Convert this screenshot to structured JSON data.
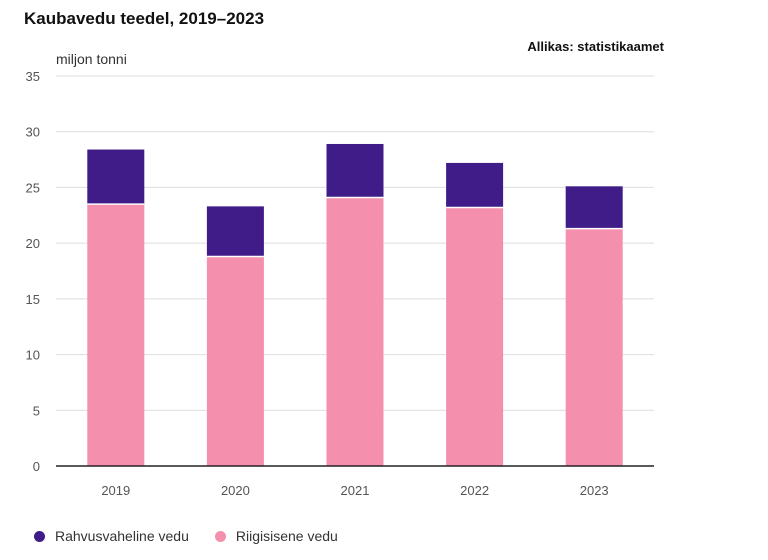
{
  "title": "Kaubavedu teedel, 2019–2023",
  "source": "Allikas: statistikaamet",
  "unit_label": "miljon tonni",
  "colors": {
    "domestic": "#f48fad",
    "international": "#3f1c88",
    "grid": "#dedede",
    "axis": "#222222",
    "tick_text": "#555555"
  },
  "chart_data": {
    "type": "bar",
    "stacked": true,
    "categories": [
      "2019",
      "2020",
      "2021",
      "2022",
      "2023"
    ],
    "series": [
      {
        "name": "Riigisisene vedu",
        "values": [
          23.5,
          18.8,
          24.1,
          23.2,
          21.3
        ]
      },
      {
        "name": "Rahvusvaheline vedu",
        "values": [
          4.9,
          4.5,
          4.8,
          4.0,
          3.8
        ]
      }
    ],
    "ylim": [
      0,
      35
    ],
    "yticks": [
      "0",
      "5",
      "10",
      "15",
      "20",
      "25",
      "30",
      "35"
    ],
    "grid": true,
    "legend_position": "bottom-left"
  },
  "legend": [
    {
      "label": "Rahvusvaheline vedu",
      "color": "#3f1c88"
    },
    {
      "label": "Riigisisene vedu",
      "color": "#f48fad"
    }
  ]
}
